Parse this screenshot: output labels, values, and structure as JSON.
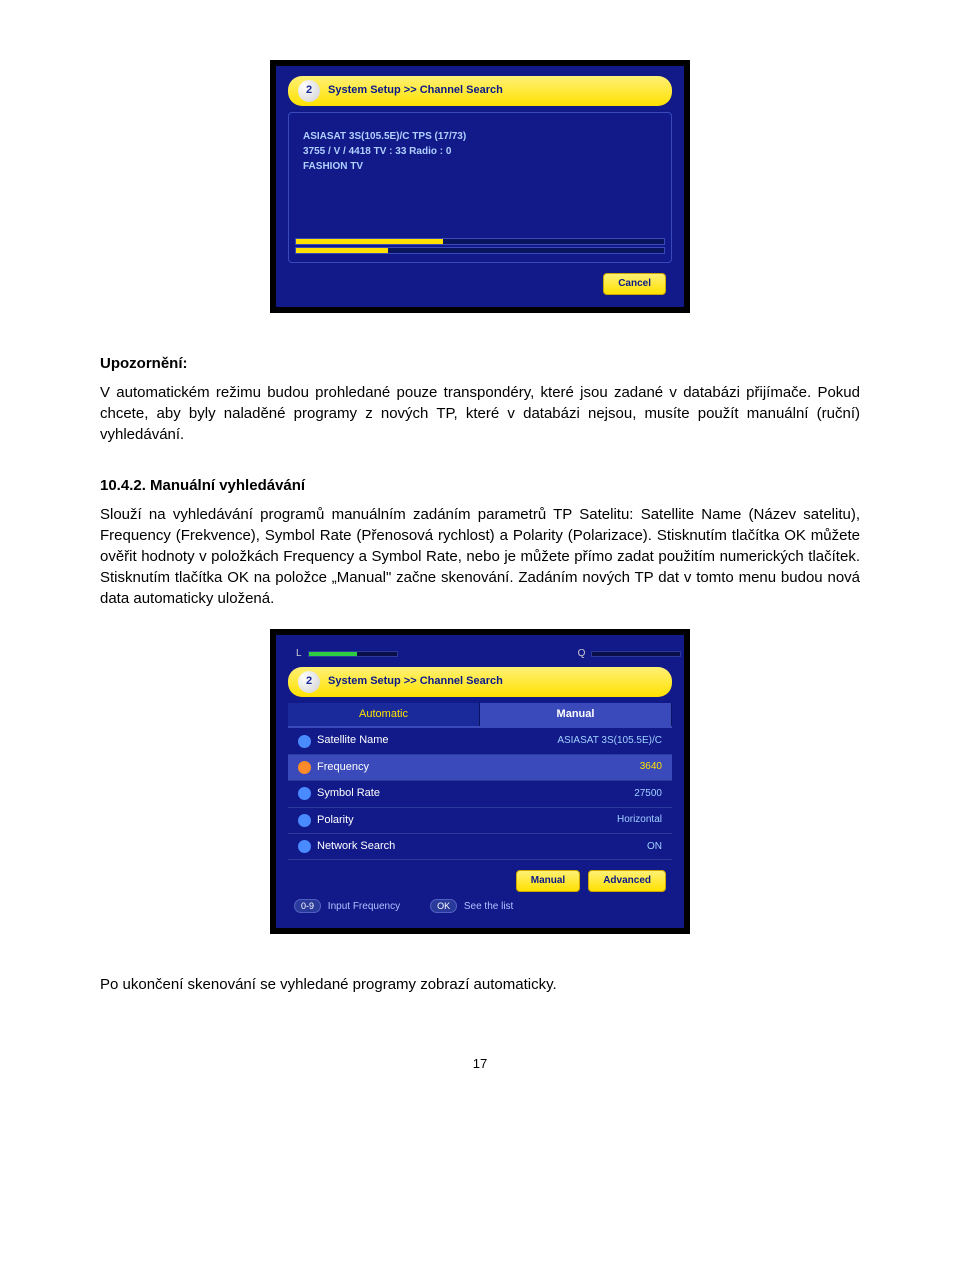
{
  "screen1": {
    "breadcrumb_icon_text": "2",
    "breadcrumb": "System Setup >> Channel Search",
    "info_line1": "ASIASAT 3S(105.5E)/C  TPS (17/73)",
    "info_line2": "3755 / V / 4418   TV : 33   Radio : 0",
    "info_line3": "FASHION TV",
    "progress1_pct": 40,
    "progress2_pct": 25,
    "cancel_label": "Cancel"
  },
  "text": {
    "warn_title": "Upozornění:",
    "warn_body": "V automatickém režimu budou prohledané pouze transpondéry, které jsou zadané v databázi přijímače. Pokud chcete, aby byly naladěné programy z nových TP, které v databázi nejsou, musíte použít manuální (ruční) vyhledávání.",
    "sect_num": "10.4.2. Manuální vyhledávání",
    "sect_body": "Slouží na vyhledávání programů manuálním zadáním parametrů TP Satelitu: Satellite Name (Název satelitu), Frequency (Frekvence), Symbol Rate (Přenosová rychlost) a Polarity (Polarizace). Stisknutím tlačítka OK můžete ověřit hodnoty v položkách Frequency a Symbol Rate, nebo je můžete přímo zadat použitím numerických tlačítek. Stisknutím tlačítka OK na položce „Manual\" začne skenování. Zadáním nových TP dat v tomto menu budou nová data automaticky uložená.",
    "outro": "Po ukončení skenování se vyhledané programy zobrazí automaticky.",
    "page_num": "17"
  },
  "screen2": {
    "sig_l_label": "L",
    "sig_l_pct": 55,
    "sig_q_label": "Q",
    "sig_q_pct": 0,
    "breadcrumb_icon_text": "2",
    "breadcrumb": "System Setup >> Channel Search",
    "tab1_label": "Automatic",
    "tab2_label": "Manual",
    "rows": [
      {
        "icon": "blue",
        "label": "Satellite Name",
        "value": "ASIASAT 3S(105.5E)/C"
      },
      {
        "icon": "orange",
        "label": "Frequency",
        "value": "3640",
        "highlight": true
      },
      {
        "icon": "blue",
        "label": "Symbol Rate",
        "value": "27500"
      },
      {
        "icon": "blue",
        "label": "Polarity",
        "value": "Horizontal"
      },
      {
        "icon": "blue",
        "label": "Network Search",
        "value": "ON"
      }
    ],
    "btn_manual": "Manual",
    "btn_advanced": "Advanced",
    "hint1_key": "0-9",
    "hint1_text": "Input Frequency",
    "hint2_key": "OK",
    "hint2_text": "See the list"
  }
}
